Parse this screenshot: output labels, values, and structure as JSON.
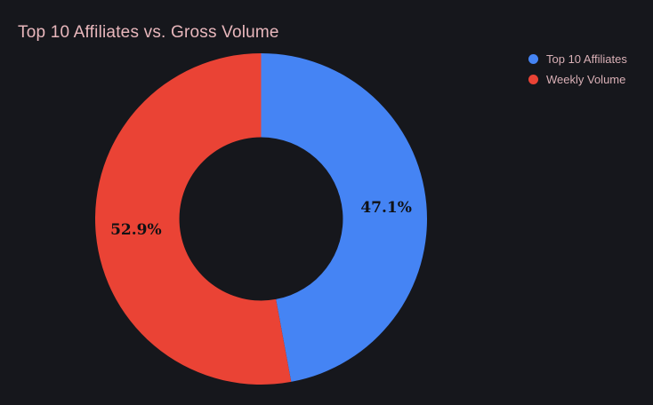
{
  "page": {
    "background": "#16171c"
  },
  "header": {
    "title": "Top 10 Affiliates vs. Gross Volume",
    "title_color": "#e8b7bc"
  },
  "legend": {
    "position": "top-right",
    "text_color": "#d9b0b6",
    "items": [
      {
        "label": "Top 10 Affiliates"
      },
      {
        "label": "Weekly Volume"
      }
    ]
  },
  "chart_data": {
    "type": "pie",
    "subtype": "donut",
    "title": "Top 10 Affiliates vs. Gross Volume",
    "categories": [
      "Top 10 Affiliates",
      "Weekly Volume"
    ],
    "values": [
      47.1,
      52.9
    ],
    "unit": "percent",
    "slice_labels": [
      "47.1%",
      "52.9%"
    ],
    "colors": [
      "#4584f4",
      "#ea4335"
    ],
    "slice_label_color": "#101114",
    "start_angle_deg": 0,
    "direction": "clockwise",
    "hole_ratio": 0.493,
    "legend_position": "top-right",
    "background": "#16171c"
  }
}
